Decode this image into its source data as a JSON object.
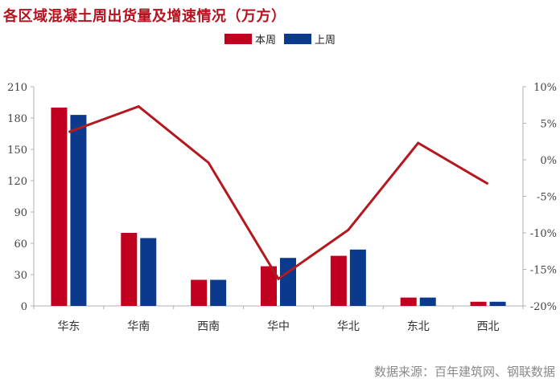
{
  "title": "各区域混凝土周出货量及增速情况（万方）",
  "source": "数据来源：百年建筑网、钢联数据",
  "colors": {
    "current": "#c0001e",
    "previous": "#0b3a8c",
    "growth": "#b3191f",
    "axis": "#b0b0b0"
  },
  "chart_data": {
    "type": "bar",
    "categories": [
      "华东",
      "华南",
      "西南",
      "华中",
      "华北",
      "东北",
      "西北"
    ],
    "series": [
      {
        "name": "本周",
        "values": [
          190,
          70,
          25,
          38,
          48,
          8,
          4
        ],
        "color": "#c0001e"
      },
      {
        "name": "上周",
        "values": [
          183,
          65,
          25,
          46,
          54,
          8,
          4
        ],
        "color": "#0b3a8c"
      }
    ],
    "line_series": {
      "values": [
        3.8,
        7.3,
        -0.4,
        -16.3,
        -9.6,
        2.3,
        -3.3
      ],
      "axis": "right",
      "color": "#b3191f"
    },
    "ylim": [
      0,
      210
    ],
    "y_ticks": [
      "0",
      "30",
      "60",
      "90",
      "120",
      "150",
      "180",
      "210"
    ],
    "y2lim": [
      -20,
      10
    ],
    "y2_ticks": [
      "-20%",
      "-15%",
      "-10%",
      "-5%",
      "0%",
      "5%",
      "10%"
    ],
    "legend_position": "top-center",
    "grid": false
  }
}
